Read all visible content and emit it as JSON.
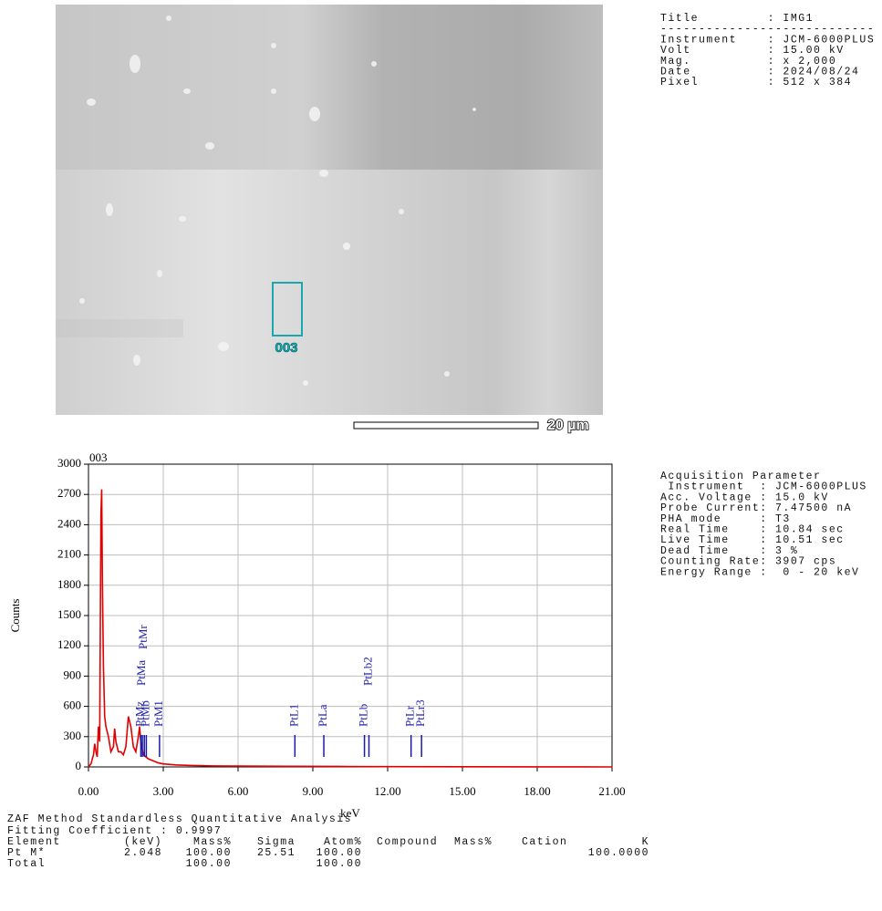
{
  "image_info": {
    "lines": [
      "Title         : IMG1",
      "----------------------------",
      "Instrument    : JCM-6000PLUS",
      "Volt          : 15.00 kV",
      "Mag.          : x 2,000",
      "Date          : 2024/08/24",
      "Pixel         : 512 x 384"
    ]
  },
  "scale_bar": "20 µm",
  "chart_data": {
    "type": "line",
    "title": "003",
    "x_label": "keV",
    "y_label": "Counts",
    "x": [
      0,
      0.1,
      0.2,
      0.25,
      0.3,
      0.35,
      0.4,
      0.45,
      0.5,
      0.53,
      0.56,
      0.6,
      0.65,
      0.7,
      0.8,
      0.9,
      1.0,
      1.05,
      1.1,
      1.2,
      1.3,
      1.4,
      1.5,
      1.55,
      1.6,
      1.7,
      1.75,
      1.8,
      1.9,
      2.0,
      2.05,
      2.1,
      2.2,
      2.4,
      2.6,
      2.8,
      3.0,
      3.5,
      4,
      5,
      6,
      8,
      10,
      12,
      15,
      18,
      21
    ],
    "series": [
      {
        "color": "#e00000",
        "values": [
          0,
          30,
          120,
          230,
          150,
          100,
          400,
          250,
          2500,
          2750,
          1800,
          1000,
          500,
          400,
          300,
          150,
          200,
          380,
          250,
          150,
          150,
          120,
          200,
          350,
          500,
          400,
          300,
          200,
          150,
          300,
          400,
          250,
          120,
          80,
          60,
          40,
          30,
          20,
          15,
          10,
          8,
          6,
          5,
          3,
          2,
          1,
          0
        ]
      }
    ],
    "markers": [
      {
        "label": "PtMz",
        "x": 2.1
      },
      {
        "label": "PtMa",
        "x": 2.16
      },
      {
        "label": "PtMr",
        "x": 2.24
      },
      {
        "label": "PtMb",
        "x": 2.32
      },
      {
        "label": "PtM1",
        "x": 2.85
      },
      {
        "label": "PtL1",
        "x": 8.28
      },
      {
        "label": "PtLa",
        "x": 9.44
      },
      {
        "label": "PtLb",
        "x": 11.07
      },
      {
        "label": "PtLb2",
        "x": 11.25
      },
      {
        "label": "PtLr",
        "x": 12.94
      },
      {
        "label": "PtLr3",
        "x": 13.36
      }
    ],
    "marker_color": "#1a1aaa",
    "xlim": [
      0,
      21
    ],
    "xticks": [
      {
        "value": 0,
        "label": "0.00"
      },
      {
        "value": 3,
        "label": "3.00"
      },
      {
        "value": 6,
        "label": "6.00"
      },
      {
        "value": 9,
        "label": "9.00"
      },
      {
        "value": 12,
        "label": "12.00"
      },
      {
        "value": 15,
        "label": "15.00"
      },
      {
        "value": 18,
        "label": "18.00"
      },
      {
        "value": 21,
        "label": "21.00"
      }
    ],
    "ylim": [
      0,
      3000
    ],
    "yticks": [
      0,
      300,
      600,
      900,
      1200,
      1500,
      1800,
      2100,
      2400,
      2700,
      3000
    ],
    "grid": true
  },
  "acquisition": {
    "lines": [
      "Acquisition Parameter",
      " Instrument  : JCM-6000PLUS",
      "Acc. Voltage : 15.0 kV",
      "Probe Current: 7.47500 nA",
      "PHA mode     : T3",
      "Real Time    : 10.84 sec",
      "Live Time    : 10.51 sec",
      "Dead Time    : 3 %",
      "Counting Rate: 3907 cps",
      "Energy Range :  0 - 20 keV"
    ]
  },
  "analysis": {
    "title": "ZAF Method Standardless Quantitative Analysis",
    "fitting": "Fitting Coefficient : 0.9997",
    "columns": [
      "Element",
      "(keV)",
      "Mass%",
      "Sigma",
      "Atom%",
      "Compound",
      "Mass%",
      "Cation",
      "K"
    ],
    "rows": [
      [
        "Pt M*",
        "2.048",
        "100.00",
        "25.51",
        "100.00",
        null,
        null,
        null,
        "100.0000"
      ],
      [
        "Total",
        null,
        "100.00",
        null,
        "100.00",
        null,
        null,
        null,
        null
      ]
    ]
  }
}
